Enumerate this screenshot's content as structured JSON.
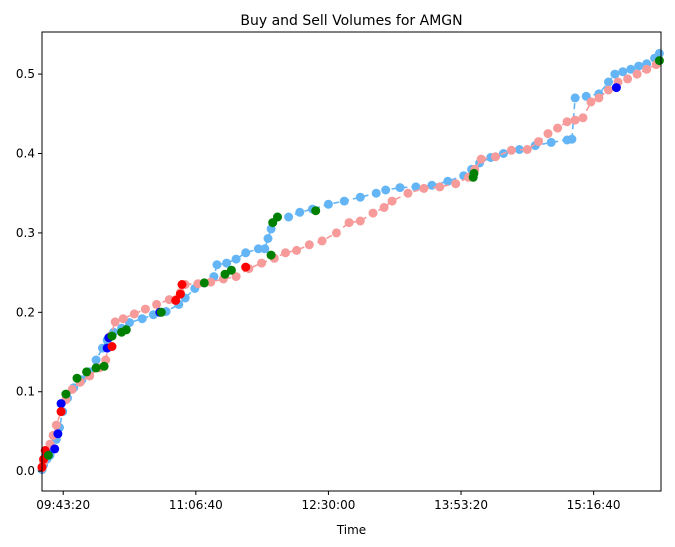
{
  "chart_data": {
    "type": "scatter",
    "title": "Buy and Sell Volumes for AMGN",
    "xlabel": "Time",
    "ylabel": "",
    "x_ticks": [
      "09:43:20",
      "11:06:40",
      "12:30:00",
      "13:53:20",
      "15:16:40"
    ],
    "x_tick_values": [
      "09:43:20",
      "11:06:40",
      "12:30:00",
      "13:53:20",
      "15:16:40"
    ],
    "y_ticks": [
      "0.0",
      "0.1",
      "0.2",
      "0.3",
      "0.4",
      "0.5"
    ],
    "y_tick_values": [
      0.0,
      0.1,
      0.2,
      0.3,
      0.4,
      0.5
    ],
    "xlim": [
      "09:30:00",
      "15:59:00"
    ],
    "ylim": [
      -0.025,
      0.553
    ],
    "grid": false,
    "legend": "none",
    "series": [
      {
        "role": "buy-volume",
        "color": "#64b5f6",
        "line": "dashed",
        "points": [
          [
            "09:30:00",
            0.002
          ],
          [
            "09:31:00",
            0.008
          ],
          [
            "09:33:00",
            0.015
          ],
          [
            "09:35:00",
            0.02
          ],
          [
            "09:37:00",
            0.028
          ],
          [
            "09:39:00",
            0.04
          ],
          [
            "09:41:00",
            0.055
          ],
          [
            "09:43:00",
            0.075
          ],
          [
            "09:46:00",
            0.092
          ],
          [
            "09:50:00",
            0.105
          ],
          [
            "09:55:00",
            0.115
          ],
          [
            "10:00:00",
            0.125
          ],
          [
            "10:04:00",
            0.14
          ],
          [
            "10:08:00",
            0.155
          ],
          [
            "10:11:00",
            0.165
          ],
          [
            "10:15:00",
            0.175
          ],
          [
            "10:20:00",
            0.18
          ],
          [
            "10:25:00",
            0.187
          ],
          [
            "10:33:00",
            0.192
          ],
          [
            "10:40:00",
            0.197
          ],
          [
            "10:48:00",
            0.201
          ],
          [
            "10:56:00",
            0.21
          ],
          [
            "11:00:00",
            0.218
          ],
          [
            "11:06:00",
            0.23
          ],
          [
            "11:12:00",
            0.237
          ],
          [
            "11:18:00",
            0.245
          ],
          [
            "11:20:00",
            0.26
          ],
          [
            "11:26:00",
            0.262
          ],
          [
            "11:32:00",
            0.267
          ],
          [
            "11:38:00",
            0.275
          ],
          [
            "11:46:00",
            0.28
          ],
          [
            "11:50:00",
            0.28
          ],
          [
            "11:52:00",
            0.293
          ],
          [
            "11:54:00",
            0.305
          ],
          [
            "11:58:00",
            0.32
          ],
          [
            "12:05:00",
            0.32
          ],
          [
            "12:12:00",
            0.326
          ],
          [
            "12:20:00",
            0.33
          ],
          [
            "12:30:00",
            0.336
          ],
          [
            "12:40:00",
            0.34
          ],
          [
            "12:50:00",
            0.345
          ],
          [
            "13:00:00",
            0.35
          ],
          [
            "13:06:00",
            0.354
          ],
          [
            "13:15:00",
            0.357
          ],
          [
            "13:25:00",
            0.358
          ],
          [
            "13:35:00",
            0.36
          ],
          [
            "13:45:00",
            0.365
          ],
          [
            "13:55:00",
            0.372
          ],
          [
            "14:00:00",
            0.38
          ],
          [
            "14:05:00",
            0.388
          ],
          [
            "14:12:00",
            0.395
          ],
          [
            "14:20:00",
            0.4
          ],
          [
            "14:30:00",
            0.405
          ],
          [
            "14:40:00",
            0.41
          ],
          [
            "14:50:00",
            0.414
          ],
          [
            "15:00:00",
            0.417
          ],
          [
            "15:03:00",
            0.418
          ],
          [
            "15:05:00",
            0.47
          ],
          [
            "15:12:00",
            0.472
          ],
          [
            "15:20:00",
            0.475
          ],
          [
            "15:26:00",
            0.49
          ],
          [
            "15:30:00",
            0.5
          ],
          [
            "15:35:00",
            0.503
          ],
          [
            "15:40:00",
            0.506
          ],
          [
            "15:45:00",
            0.51
          ],
          [
            "15:50:00",
            0.513
          ],
          [
            "15:55:00",
            0.52
          ],
          [
            "15:58:00",
            0.526
          ]
        ]
      },
      {
        "role": "sell-volume",
        "color": "#f69a9a",
        "line": "dashed",
        "points": [
          [
            "09:30:00",
            0.004
          ],
          [
            "09:31:00",
            0.012
          ],
          [
            "09:33:00",
            0.022
          ],
          [
            "09:35:00",
            0.034
          ],
          [
            "09:37:00",
            0.045
          ],
          [
            "09:39:00",
            0.058
          ],
          [
            "09:42:00",
            0.075
          ],
          [
            "09:45:00",
            0.09
          ],
          [
            "09:49:00",
            0.103
          ],
          [
            "09:54:00",
            0.112
          ],
          [
            "10:00:00",
            0.12
          ],
          [
            "10:06:00",
            0.13
          ],
          [
            "10:10:00",
            0.14
          ],
          [
            "10:13:00",
            0.17
          ],
          [
            "10:16:00",
            0.188
          ],
          [
            "10:21:00",
            0.192
          ],
          [
            "10:28:00",
            0.198
          ],
          [
            "10:35:00",
            0.204
          ],
          [
            "10:42:00",
            0.21
          ],
          [
            "10:50:00",
            0.216
          ],
          [
            "10:57:00",
            0.225
          ],
          [
            "11:00:00",
            0.235
          ],
          [
            "11:08:00",
            0.236
          ],
          [
            "11:16:00",
            0.238
          ],
          [
            "11:24:00",
            0.242
          ],
          [
            "11:32:00",
            0.245
          ],
          [
            "11:40:00",
            0.255
          ],
          [
            "11:48:00",
            0.262
          ],
          [
            "11:56:00",
            0.268
          ],
          [
            "12:03:00",
            0.275
          ],
          [
            "12:10:00",
            0.278
          ],
          [
            "12:18:00",
            0.285
          ],
          [
            "12:26:00",
            0.29
          ],
          [
            "12:35:00",
            0.3
          ],
          [
            "12:43:00",
            0.313
          ],
          [
            "12:50:00",
            0.315
          ],
          [
            "12:58:00",
            0.325
          ],
          [
            "13:05:00",
            0.332
          ],
          [
            "13:10:00",
            0.34
          ],
          [
            "13:20:00",
            0.35
          ],
          [
            "13:30:00",
            0.356
          ],
          [
            "13:40:00",
            0.358
          ],
          [
            "13:50:00",
            0.362
          ],
          [
            "13:58:00",
            0.37
          ],
          [
            "14:02:00",
            0.38
          ],
          [
            "14:06:00",
            0.393
          ],
          [
            "14:15:00",
            0.396
          ],
          [
            "14:25:00",
            0.404
          ],
          [
            "14:35:00",
            0.405
          ],
          [
            "14:42:00",
            0.415
          ],
          [
            "14:48:00",
            0.425
          ],
          [
            "14:54:00",
            0.432
          ],
          [
            "15:00:00",
            0.44
          ],
          [
            "15:05:00",
            0.442
          ],
          [
            "15:10:00",
            0.445
          ],
          [
            "15:15:00",
            0.465
          ],
          [
            "15:20:00",
            0.47
          ],
          [
            "15:26:00",
            0.48
          ],
          [
            "15:32:00",
            0.49
          ],
          [
            "15:38:00",
            0.494
          ],
          [
            "15:44:00",
            0.5
          ],
          [
            "15:50:00",
            0.506
          ],
          [
            "15:56:00",
            0.512
          ]
        ]
      },
      {
        "role": "buy-markers",
        "color": "#0000ff",
        "points": [
          [
            "09:33:00",
            0.022
          ],
          [
            "09:38:00",
            0.028
          ],
          [
            "09:40:00",
            0.047
          ],
          [
            "09:42:00",
            0.085
          ],
          [
            "10:11:00",
            0.155
          ],
          [
            "10:12:00",
            0.168
          ],
          [
            "10:44:00",
            0.2
          ],
          [
            "15:31:00",
            0.483
          ]
        ]
      },
      {
        "role": "sell-markers",
        "color": "#ff0000",
        "points": [
          [
            "09:30:00",
            0.005
          ],
          [
            "09:31:00",
            0.015
          ],
          [
            "09:32:00",
            0.026
          ],
          [
            "09:42:00",
            0.075
          ],
          [
            "10:14:00",
            0.157
          ],
          [
            "10:54:00",
            0.215
          ],
          [
            "10:57:00",
            0.223
          ],
          [
            "10:58:00",
            0.235
          ],
          [
            "11:38:00",
            0.257
          ]
        ]
      },
      {
        "role": "green-markers",
        "color": "#008000",
        "points": [
          [
            "09:34:00",
            0.02
          ],
          [
            "09:45:00",
            0.097
          ],
          [
            "09:52:00",
            0.117
          ],
          [
            "09:58:00",
            0.125
          ],
          [
            "10:04:00",
            0.13
          ],
          [
            "10:09:00",
            0.132
          ],
          [
            "10:14:00",
            0.17
          ],
          [
            "10:20:00",
            0.175
          ],
          [
            "10:23:00",
            0.178
          ],
          [
            "10:45:00",
            0.2
          ],
          [
            "11:12:00",
            0.237
          ],
          [
            "11:25:00",
            0.248
          ],
          [
            "11:29:00",
            0.253
          ],
          [
            "11:54:00",
            0.272
          ],
          [
            "11:55:00",
            0.313
          ],
          [
            "11:58:00",
            0.32
          ],
          [
            "12:22:00",
            0.328
          ],
          [
            "14:01:00",
            0.37
          ],
          [
            "14:01:30",
            0.375
          ],
          [
            "15:58:00",
            0.517
          ]
        ]
      }
    ]
  }
}
